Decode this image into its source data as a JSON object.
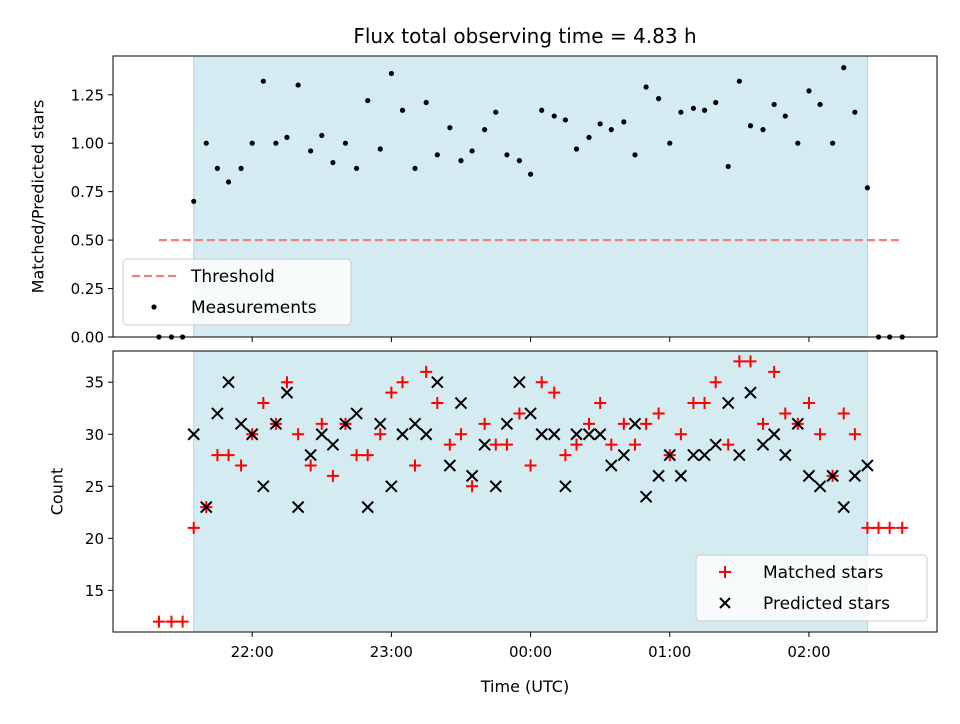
{
  "title": "Flux total observing time = 4.83 h",
  "colors": {
    "observing_band": "#d4ebf1",
    "band_edge": "#a8d8e0",
    "threshold": "#f08080",
    "measurement": "#000000",
    "matched": "#ff0000",
    "predicted": "#000000"
  },
  "chart_data": [
    {
      "type": "scatter",
      "ylabel": "Matched/Predicted stars",
      "xlabel": "",
      "ylim": [
        0,
        1.45
      ],
      "yticks": [
        0.0,
        0.25,
        0.5,
        0.75,
        1.0,
        1.25
      ],
      "ytick_labels": [
        "0.00",
        "0.25",
        "0.50",
        "0.75",
        "1.00",
        "1.25"
      ],
      "xticks": [
        22.0,
        23.0,
        24.0,
        25.0,
        26.0
      ],
      "observing_band": [
        21.58,
        26.42
      ],
      "threshold": {
        "name": "Threshold",
        "y": 0.5,
        "x_range": [
          21.33,
          26.67
        ]
      },
      "legend": {
        "placement": "lower-left",
        "entries": [
          "Threshold",
          "Measurements"
        ]
      },
      "series": [
        {
          "name": "Measurements",
          "x": [
            21.33,
            21.42,
            21.5,
            21.58,
            21.67,
            21.75,
            21.83,
            21.92,
            22.0,
            22.08,
            22.17,
            22.25,
            22.33,
            22.42,
            22.5,
            22.58,
            22.67,
            22.75,
            22.83,
            22.92,
            23.0,
            23.08,
            23.17,
            23.25,
            23.33,
            23.42,
            23.5,
            23.58,
            23.67,
            23.75,
            23.83,
            23.92,
            24.0,
            24.08,
            24.17,
            24.25,
            24.33,
            24.42,
            24.5,
            24.58,
            24.67,
            24.75,
            24.83,
            24.92,
            25.0,
            25.08,
            25.17,
            25.25,
            25.33,
            25.42,
            25.5,
            25.58,
            25.67,
            25.75,
            25.83,
            25.92,
            26.0,
            26.08,
            26.17,
            26.25,
            26.33,
            26.42,
            26.5,
            26.58,
            26.67
          ],
          "y": [
            0.0,
            0.0,
            0.0,
            0.7,
            1.0,
            0.87,
            0.8,
            0.87,
            1.0,
            1.32,
            1.0,
            1.03,
            1.3,
            0.96,
            1.04,
            0.9,
            1.0,
            0.87,
            1.22,
            0.97,
            1.36,
            1.17,
            0.87,
            1.21,
            0.94,
            1.08,
            0.91,
            0.96,
            1.07,
            1.16,
            0.94,
            0.91,
            0.84,
            1.17,
            1.14,
            1.12,
            0.97,
            1.03,
            1.1,
            1.07,
            1.11,
            0.94,
            1.29,
            1.23,
            1.0,
            1.16,
            1.18,
            1.17,
            1.21,
            0.88,
            1.32,
            1.09,
            1.07,
            1.2,
            1.14,
            1.0,
            1.27,
            1.2,
            1.0,
            1.39,
            1.16,
            0.77,
            0.0,
            0.0,
            0.0
          ]
        }
      ]
    },
    {
      "type": "scatter",
      "ylabel": "Count",
      "xlabel": "Time (UTC)",
      "ylim": [
        11,
        38
      ],
      "yticks": [
        15,
        20,
        25,
        30,
        35
      ],
      "ytick_labels": [
        "15",
        "20",
        "25",
        "30",
        "35"
      ],
      "xticks": [
        22.0,
        23.0,
        24.0,
        25.0,
        26.0
      ],
      "xtick_labels": [
        "22:00",
        "23:00",
        "00:00",
        "01:00",
        "02:00"
      ],
      "observing_band": [
        21.58,
        26.42
      ],
      "legend": {
        "placement": "lower-right",
        "entries": [
          "Matched stars",
          "Predicted stars"
        ]
      },
      "series": [
        {
          "name": "Matched stars",
          "marker": "plus",
          "x": [
            21.33,
            21.42,
            21.5,
            21.58,
            21.67,
            21.75,
            21.83,
            21.92,
            22.0,
            22.08,
            22.17,
            22.25,
            22.33,
            22.42,
            22.5,
            22.58,
            22.67,
            22.75,
            22.83,
            22.92,
            23.0,
            23.08,
            23.17,
            23.25,
            23.33,
            23.42,
            23.5,
            23.58,
            23.67,
            23.75,
            23.83,
            23.92,
            24.0,
            24.08,
            24.17,
            24.25,
            24.33,
            24.42,
            24.5,
            24.58,
            24.67,
            24.75,
            24.83,
            24.92,
            25.0,
            25.08,
            25.17,
            25.25,
            25.33,
            25.42,
            25.5,
            25.58,
            25.67,
            25.75,
            25.83,
            25.92,
            26.0,
            26.08,
            26.17,
            26.25,
            26.33,
            26.42,
            26.5,
            26.58,
            26.67
          ],
          "y": [
            12,
            12,
            12,
            21,
            23,
            28,
            28,
            27,
            30,
            33,
            31,
            35,
            30,
            27,
            31,
            26,
            31,
            28,
            28,
            30,
            34,
            35,
            27,
            36,
            33,
            29,
            30,
            25,
            31,
            29,
            29,
            32,
            27,
            35,
            34,
            28,
            29,
            31,
            33,
            29,
            31,
            29,
            31,
            32,
            28,
            30,
            33,
            33,
            35,
            29,
            37,
            37,
            31,
            36,
            32,
            31,
            33,
            30,
            26,
            32,
            30,
            21,
            21,
            21,
            21
          ]
        },
        {
          "name": "Predicted stars",
          "marker": "x",
          "x": [
            21.58,
            21.67,
            21.75,
            21.83,
            21.92,
            22.0,
            22.08,
            22.17,
            22.25,
            22.33,
            22.42,
            22.5,
            22.58,
            22.67,
            22.75,
            22.83,
            22.92,
            23.0,
            23.08,
            23.17,
            23.25,
            23.33,
            23.42,
            23.5,
            23.58,
            23.67,
            23.75,
            23.83,
            23.92,
            24.0,
            24.08,
            24.17,
            24.25,
            24.33,
            24.42,
            24.5,
            24.58,
            24.67,
            24.75,
            24.83,
            24.92,
            25.0,
            25.08,
            25.17,
            25.25,
            25.33,
            25.42,
            25.5,
            25.58,
            25.67,
            25.75,
            25.83,
            25.92,
            26.0,
            26.08,
            26.17,
            26.25,
            26.33,
            26.42
          ],
          "y": [
            30,
            23,
            32,
            35,
            31,
            30,
            25,
            31,
            34,
            23,
            28,
            30,
            29,
            31,
            32,
            23,
            31,
            25,
            30,
            31,
            30,
            35,
            27,
            33,
            26,
            29,
            25,
            31,
            35,
            32,
            30,
            30,
            25,
            30,
            30,
            30,
            27,
            28,
            31,
            24,
            26,
            28,
            26,
            28,
            28,
            29,
            33,
            28,
            34,
            29,
            30,
            28,
            31,
            26,
            25,
            26,
            23,
            26,
            27
          ]
        }
      ]
    }
  ]
}
